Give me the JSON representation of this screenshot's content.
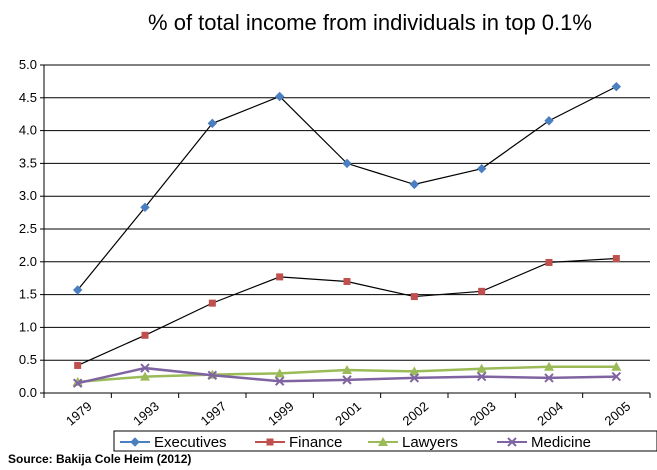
{
  "chart_data": {
    "type": "line",
    "title": "% of total income from individuals in top 0.1%",
    "categories": [
      "1979",
      "1993",
      "1997",
      "1999",
      "2001",
      "2002",
      "2003",
      "2004",
      "2005"
    ],
    "ylim": [
      0,
      5
    ],
    "yticks": [
      "0.0",
      "0.5",
      "1.0",
      "1.5",
      "2.0",
      "2.5",
      "3.0",
      "3.5",
      "4.0",
      "4.5",
      "5.0"
    ],
    "grid": "horizontal",
    "legend_position": "bottom",
    "series": [
      {
        "name": "Executives",
        "color": "#4a7fc1",
        "line_color": "#000000",
        "marker": "diamond",
        "values": [
          1.57,
          2.83,
          4.11,
          4.52,
          3.5,
          3.18,
          3.42,
          4.15,
          4.67
        ]
      },
      {
        "name": "Finance",
        "color": "#c0504d",
        "line_color": "#000000",
        "marker": "square",
        "values": [
          0.42,
          0.88,
          1.37,
          1.77,
          1.7,
          1.47,
          1.55,
          1.99,
          2.05
        ]
      },
      {
        "name": "Lawyers",
        "color": "#9bbb59",
        "line_color": "#9bbb59",
        "marker": "triangle",
        "values": [
          0.17,
          0.25,
          0.28,
          0.3,
          0.35,
          0.33,
          0.37,
          0.4,
          0.4
        ]
      },
      {
        "name": "Medicine",
        "color": "#8064a2",
        "line_color": "#8064a2",
        "marker": "x",
        "values": [
          0.15,
          0.38,
          0.27,
          0.18,
          0.2,
          0.23,
          0.25,
          0.23,
          0.25
        ]
      }
    ]
  },
  "source": "Source: Bakija Cole Heim (2012)"
}
